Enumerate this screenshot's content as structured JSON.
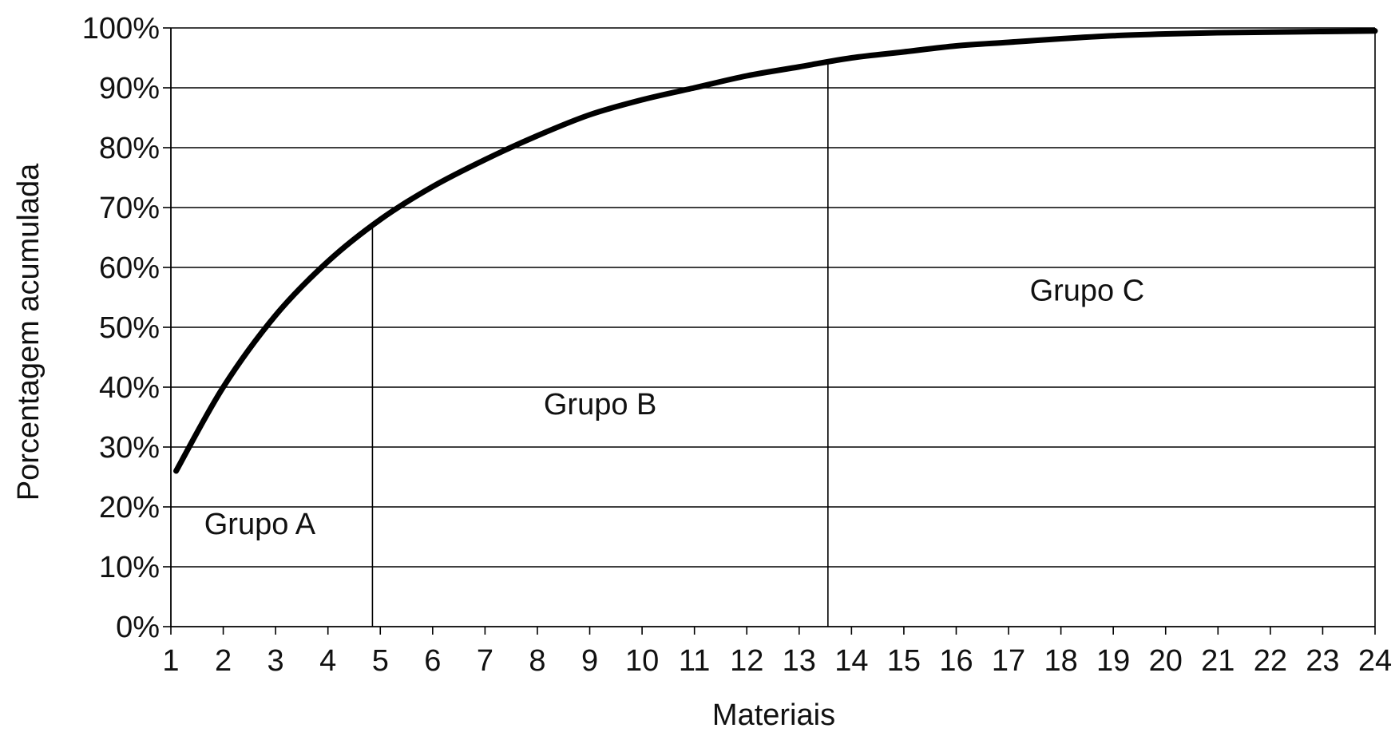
{
  "chart_data": {
    "type": "line",
    "title": "",
    "xlabel": "Materiais",
    "ylabel": "Porcentagem acumulada",
    "x_ticks": [
      "1",
      "2",
      "3",
      "4",
      "5",
      "6",
      "7",
      "8",
      "9",
      "10",
      "11",
      "12",
      "13",
      "14",
      "15",
      "16",
      "17",
      "18",
      "19",
      "20",
      "21",
      "22",
      "23",
      "24"
    ],
    "y_ticks": [
      "0%",
      "10%",
      "20%",
      "30%",
      "40%",
      "50%",
      "60%",
      "70%",
      "80%",
      "90%",
      "100%"
    ],
    "xlim": [
      1,
      24
    ],
    "ylim": [
      0,
      100
    ],
    "grid": "horizontal",
    "legend": "none",
    "series": [
      {
        "x": [
          1.1,
          2,
          3,
          4,
          5,
          6,
          7,
          8,
          9,
          10,
          11,
          12,
          13,
          14,
          15,
          16,
          17,
          18,
          19,
          20,
          21,
          22,
          23,
          24
        ],
        "values": [
          26,
          40,
          52,
          61,
          68,
          73.5,
          78,
          82,
          85.5,
          88,
          90,
          92,
          93.5,
          95,
          96,
          97,
          97.6,
          98.2,
          98.7,
          99,
          99.2,
          99.3,
          99.4,
          99.5
        ],
        "color": "#000000"
      }
    ],
    "dividers": [
      4.85,
      13.55
    ],
    "annotations": [
      {
        "text": "Grupo A",
        "x": 2.7,
        "y": 15.5
      },
      {
        "text": "Grupo B",
        "x": 9.2,
        "y": 35.5
      },
      {
        "text": "Grupo C",
        "x": 18.5,
        "y": 54.5
      }
    ]
  }
}
